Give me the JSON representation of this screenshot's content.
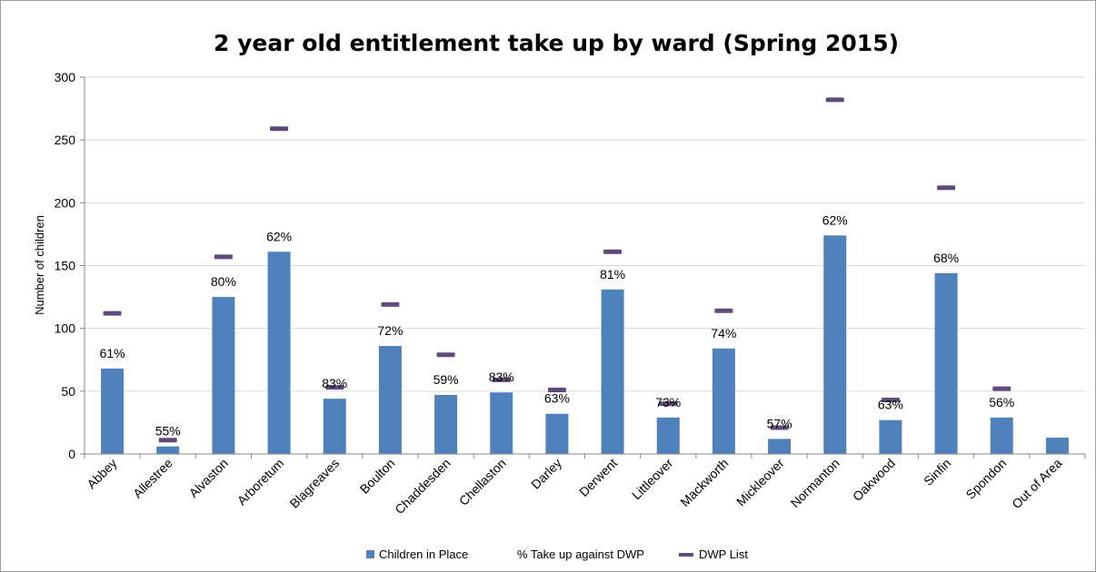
{
  "chart_data": {
    "type": "bar",
    "title": "2 year old entitlement take up by ward (Spring 2015)",
    "ylabel": "Number of children",
    "xlabel": "",
    "ylim": [
      0,
      300
    ],
    "yticks": [
      "0",
      "50",
      "100",
      "150",
      "200",
      "250",
      "300"
    ],
    "grid": true,
    "legend_position": "bottom",
    "categories": [
      "Abbey",
      "Allestree",
      "Alvaston",
      "Arboretum",
      "Blagreaves",
      "Boulton",
      "Chaddesden",
      "Chellaston",
      "Darley",
      "Derwent",
      "Littleover",
      "Mackworth",
      "Mickleover",
      "Normanton",
      "Oakwood",
      "Sinfin",
      "Spondon",
      "Out of Area"
    ],
    "series": [
      {
        "name": "Children in Place",
        "kind": "bar",
        "color": "#4f81bd",
        "values": [
          68,
          6,
          125,
          161,
          44,
          86,
          47,
          49,
          32,
          131,
          29,
          84,
          12,
          174,
          27,
          144,
          29,
          13
        ]
      },
      {
        "name": "% Take up against DWP",
        "kind": "label",
        "values": [
          "61%",
          "55%",
          "80%",
          "62%",
          "83%",
          "72%",
          "59%",
          "83%",
          "63%",
          "81%",
          "73%",
          "74%",
          "57%",
          "62%",
          "63%",
          "68%",
          "56%",
          ""
        ]
      },
      {
        "name": "DWP List",
        "kind": "marker",
        "color": "#604a7b",
        "values": [
          112,
          11,
          157,
          259,
          53,
          119,
          79,
          59,
          51,
          161,
          40,
          114,
          21,
          282,
          43,
          212,
          52,
          null
        ]
      }
    ]
  }
}
